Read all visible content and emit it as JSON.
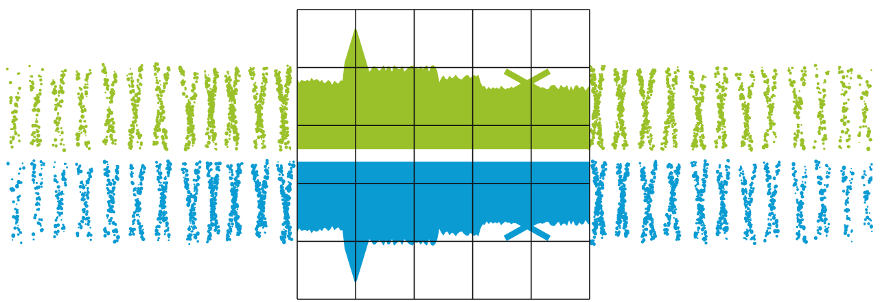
{
  "graphic": {
    "colors": {
      "top_band": "#9bc12a",
      "bottom_band": "#0b9bd3",
      "grid_line": "#111111",
      "background": "#ffffff"
    },
    "grid": {
      "columns": 5,
      "rows": 5
    },
    "bands": [
      {
        "name": "green-waveform",
        "color_key": "top_band",
        "direction": "up"
      },
      {
        "name": "blue-waveform",
        "color_key": "bottom_band",
        "direction": "down"
      }
    ],
    "marks": [
      "x-mark"
    ]
  }
}
